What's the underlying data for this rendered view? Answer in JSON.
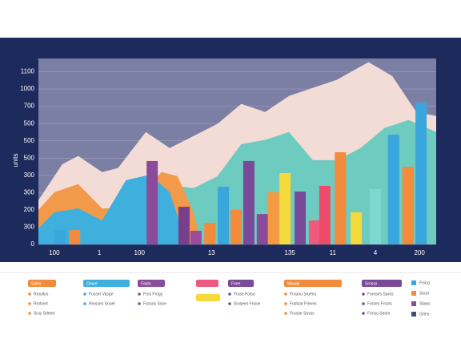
{
  "chart_data": {
    "type": "bar",
    "y_axis_label": "units",
    "xlim": [
      0,
      100
    ],
    "ylim": [
      0,
      1100
    ],
    "xticks": [
      {
        "value": 4,
        "label": "100"
      },
      {
        "value": 15.3,
        "label": "1"
      },
      {
        "value": 25.4,
        "label": "100"
      },
      {
        "value": 43.5,
        "label": "13"
      },
      {
        "value": 63.2,
        "label": "135"
      },
      {
        "value": 74,
        "label": "11"
      },
      {
        "value": 84.7,
        "label": "4"
      },
      {
        "value": 95.8,
        "label": "200"
      }
    ],
    "yticks": [
      0,
      {
        "value": 100,
        "label": "300"
      },
      200,
      300,
      {
        "value": 400,
        "label": "300"
      },
      500,
      {
        "value": 600,
        "label": "500"
      },
      {
        "value": 700,
        "label": "500"
      },
      {
        "value": 800,
        "label": "700"
      },
      {
        "value": 900,
        "label": "1000"
      },
      {
        "value": 1000,
        "label": "1100"
      }
    ],
    "grid": true,
    "areas": [
      {
        "color": "#f3dcd6",
        "x": [
          0,
          6,
          10,
          16,
          20,
          27,
          33,
          39,
          45,
          51,
          57,
          63,
          69,
          75,
          83,
          89,
          95,
          100
        ],
        "values": [
          256,
          465,
          512,
          419,
          442,
          651,
          558,
          628,
          698,
          814,
          767,
          860,
          907,
          953,
          1056,
          974,
          767,
          744
        ]
      },
      {
        "color": "#6ecbc0",
        "x": [
          0,
          10,
          20,
          31,
          39,
          45,
          51,
          57,
          63,
          69,
          75,
          81,
          87,
          93,
          100
        ],
        "values": [
          139,
          93,
          116,
          349,
          326,
          395,
          581,
          605,
          651,
          488,
          488,
          558,
          674,
          721,
          651
        ]
      },
      {
        "color": "#f39a4a",
        "x": [
          0,
          4,
          10,
          16,
          20,
          25,
          31,
          35,
          39,
          41
        ],
        "values": [
          200,
          302,
          349,
          209,
          209,
          279,
          419,
          395,
          186,
          0
        ]
      },
      {
        "color": "#3fb0de",
        "x": [
          0,
          4,
          10,
          16,
          22,
          28,
          33,
          37
        ],
        "values": [
          93,
          186,
          209,
          139,
          372,
          404,
          302,
          23
        ]
      }
    ],
    "bars": {
      "x": [
        5.4,
        9.1,
        28.6,
        36.6,
        39.6,
        43.1,
        46.5,
        49.7,
        52.9,
        56.3,
        59.1,
        62,
        65.8,
        69.4,
        72,
        75.9,
        79.9,
        84.7,
        89.3,
        92.9,
        96.2
      ],
      "values": [
        83,
        83,
        483,
        218,
        79,
        125,
        334,
        200,
        483,
        176,
        302,
        413,
        306,
        139,
        339,
        534,
        186,
        320,
        636,
        450,
        822
      ],
      "colors": [
        "#3aa7dc",
        "#f28c3c",
        "#8a4c9a",
        "#7a3f8c",
        "#9a4d9e",
        "#f28c3c",
        "#3aa7dc",
        "#f28c3c",
        "#7a4a9a",
        "#8a4c9a",
        "#f59a40",
        "#f6d93a",
        "#7a4a9a",
        "#ee5a7e",
        "#ee4a6a",
        "#f28c3c",
        "#f6d93a",
        "#7fd8d0",
        "#3aa7dc",
        "#f28c3c",
        "#3aa7dc"
      ]
    },
    "legend_groups": [
      {
        "color": "#f28c3c",
        "label": "Sales",
        "items": [
          "Rroullos",
          "Rrolned",
          "Sruy Sdeed"
        ]
      },
      {
        "color": "#3fb0de",
        "label": "Ooure",
        "items": [
          "Fosser Vasge",
          "Rrosses Snoel"
        ]
      },
      {
        "color": "#8a4c9a",
        "label": "Fasto",
        "items": [
          "Fros Frogy",
          "Fsosos Ssoe"
        ]
      },
      {
        "color": "#ee5a7e",
        "label": "",
        "items": []
      },
      {
        "color": "#7a4a9a",
        "label": "Fnee",
        "items": [
          "Fruse Fotso",
          "Srosees Fnsse"
        ]
      },
      {
        "color": "#f28c3c",
        "label": "Mauuq",
        "items": [
          "Frouou Sruens",
          "Fostsar Freoes",
          "Frusae Suvss"
        ]
      },
      {
        "color": "#7a4a9a",
        "label": "Srosss",
        "items": [
          "Fornses Saros",
          "Forses Frsors",
          "Fonsu Seom"
        ]
      }
    ],
    "side_legend": [
      {
        "color": "#3aa7dc",
        "label": "Frsirg"
      },
      {
        "color": "#f28c3c",
        "label": "Sourt"
      },
      {
        "color": "#8a4c9a",
        "label": "Staws"
      },
      {
        "color": "#444c70",
        "label": "Grtes"
      }
    ]
  }
}
